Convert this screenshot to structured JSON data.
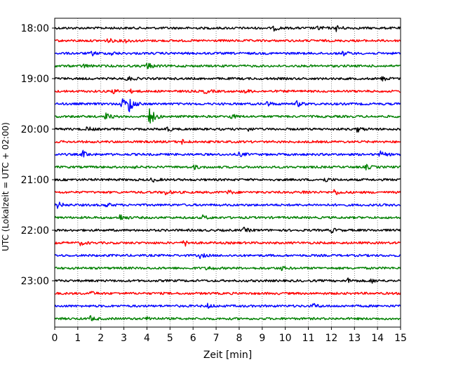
{
  "chart_data": {
    "type": "line",
    "title": "",
    "xlabel": "Zeit  [min]",
    "ylabel": "UTC (Lokalzeit = UTC + 02:00)",
    "xlim": [
      0,
      15
    ],
    "x_ticks": [
      "0",
      "1",
      "2",
      "3",
      "4",
      "5",
      "6",
      "7",
      "8",
      "9",
      "10",
      "11",
      "12",
      "13",
      "14",
      "15"
    ],
    "y_tick_labels": [
      "18:00",
      "19:00",
      "20:00",
      "21:00",
      "22:00",
      "23:00"
    ],
    "grid": "vertical dotted",
    "legend": "none",
    "trace_interval_min": 15,
    "series_colors": [
      "#000000",
      "#ff0000",
      "#0000ff",
      "#008000"
    ],
    "traces": [
      {
        "start": "18:00",
        "color": "#000000",
        "events": [
          {
            "t": 9.5,
            "amp": 3
          },
          {
            "t": 11.4,
            "amp": 3
          },
          {
            "t": 12.2,
            "amp": 4
          }
        ]
      },
      {
        "start": "18:15",
        "color": "#ff0000",
        "events": [
          {
            "t": 2.3,
            "amp": 3
          },
          {
            "t": 3.0,
            "amp": 3
          }
        ]
      },
      {
        "start": "18:30",
        "color": "#0000ff",
        "events": [
          {
            "t": 1.6,
            "amp": 3
          },
          {
            "t": 2.4,
            "amp": 3
          },
          {
            "t": 12.5,
            "amp": 3
          }
        ]
      },
      {
        "start": "18:45",
        "color": "#008000",
        "events": [
          {
            "t": 1.2,
            "amp": 3
          },
          {
            "t": 4.0,
            "amp": 5
          }
        ]
      },
      {
        "start": "19:00",
        "color": "#000000",
        "events": [
          {
            "t": 3.1,
            "amp": 4
          },
          {
            "t": 14.2,
            "amp": 3
          }
        ]
      },
      {
        "start": "19:15",
        "color": "#ff0000",
        "events": [
          {
            "t": 2.5,
            "amp": 3
          },
          {
            "t": 3.2,
            "amp": 3
          },
          {
            "t": 6.5,
            "amp": 3
          },
          {
            "t": 8.2,
            "amp": 3
          }
        ]
      },
      {
        "start": "19:30",
        "color": "#0000ff",
        "events": [
          {
            "t": 2.9,
            "amp": 9
          },
          {
            "t": 3.2,
            "amp": 13
          },
          {
            "t": 9.2,
            "amp": 3
          },
          {
            "t": 10.5,
            "amp": 4
          }
        ]
      },
      {
        "start": "19:45",
        "color": "#008000",
        "events": [
          {
            "t": 2.2,
            "amp": 5
          },
          {
            "t": 4.1,
            "amp": 14
          },
          {
            "t": 7.6,
            "amp": 4
          }
        ]
      },
      {
        "start": "20:00",
        "color": "#000000",
        "events": [
          {
            "t": 1.4,
            "amp": 3
          },
          {
            "t": 4.8,
            "amp": 4
          },
          {
            "t": 8.3,
            "amp": 3
          },
          {
            "t": 13.1,
            "amp": 4
          }
        ]
      },
      {
        "start": "20:15",
        "color": "#ff0000",
        "events": [
          {
            "t": 5.5,
            "amp": 3
          }
        ]
      },
      {
        "start": "20:30",
        "color": "#0000ff",
        "events": [
          {
            "t": 1.2,
            "amp": 5
          },
          {
            "t": 8.0,
            "amp": 3
          },
          {
            "t": 14.1,
            "amp": 4
          }
        ]
      },
      {
        "start": "20:45",
        "color": "#008000",
        "events": [
          {
            "t": 3.2,
            "amp": 3
          },
          {
            "t": 6.0,
            "amp": 3
          },
          {
            "t": 13.5,
            "amp": 3
          }
        ]
      },
      {
        "start": "21:00",
        "color": "#000000",
        "events": [
          {
            "t": 4.2,
            "amp": 3
          },
          {
            "t": 11.7,
            "amp": 3
          }
        ]
      },
      {
        "start": "21:15",
        "color": "#ff0000",
        "events": [
          {
            "t": 4.8,
            "amp": 3
          },
          {
            "t": 7.5,
            "amp": 3
          },
          {
            "t": 10.8,
            "amp": 3
          },
          {
            "t": 12.1,
            "amp": 4
          }
        ]
      },
      {
        "start": "21:30",
        "color": "#0000ff",
        "events": [
          {
            "t": 0.1,
            "amp": 5
          },
          {
            "t": 2.2,
            "amp": 3
          }
        ]
      },
      {
        "start": "21:45",
        "color": "#008000",
        "events": [
          {
            "t": 2.8,
            "amp": 5
          },
          {
            "t": 6.4,
            "amp": 3
          }
        ]
      },
      {
        "start": "22:00",
        "color": "#000000",
        "events": [
          {
            "t": 8.2,
            "amp": 3
          },
          {
            "t": 12.0,
            "amp": 3
          }
        ]
      },
      {
        "start": "22:15",
        "color": "#ff0000",
        "events": [
          {
            "t": 1.1,
            "amp": 3
          },
          {
            "t": 5.6,
            "amp": 5
          }
        ]
      },
      {
        "start": "22:30",
        "color": "#0000ff",
        "events": [
          {
            "t": 6.3,
            "amp": 3
          }
        ]
      },
      {
        "start": "22:45",
        "color": "#008000",
        "events": [
          {
            "t": 6.6,
            "amp": 3
          },
          {
            "t": 9.8,
            "amp": 3
          }
        ]
      },
      {
        "start": "23:00",
        "color": "#000000",
        "events": [
          {
            "t": 12.7,
            "amp": 3
          },
          {
            "t": 13.7,
            "amp": 3
          }
        ]
      },
      {
        "start": "23:15",
        "color": "#ff0000",
        "events": [
          {
            "t": 1.5,
            "amp": 3
          }
        ]
      },
      {
        "start": "23:30",
        "color": "#0000ff",
        "events": [
          {
            "t": 6.6,
            "amp": 3
          },
          {
            "t": 11.2,
            "amp": 3
          }
        ]
      },
      {
        "start": "23:45",
        "color": "#008000",
        "events": [
          {
            "t": 1.5,
            "amp": 4
          },
          {
            "t": 4.0,
            "amp": 3
          }
        ]
      }
    ]
  }
}
